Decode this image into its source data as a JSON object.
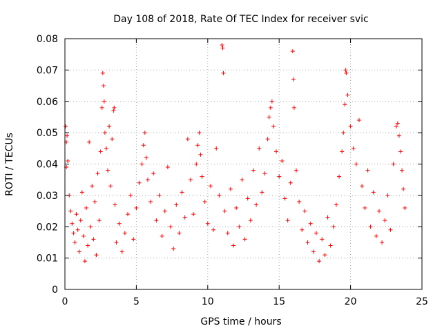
{
  "chart_data": {
    "type": "scatter",
    "title": "Day 108 of 2018, Rate Of TEC Index for receiver svic",
    "xlabel": "GPS time / hours",
    "ylabel": "ROTI / TECUs",
    "xlim": [
      0,
      25
    ],
    "ylim": [
      0,
      0.08
    ],
    "x_ticks": [
      0,
      5,
      10,
      15,
      20,
      25
    ],
    "x_tick_labels": [
      "0",
      "5",
      "10",
      "15",
      "20",
      "25"
    ],
    "y_ticks": [
      0,
      0.01,
      0.02,
      0.03,
      0.04,
      0.05,
      0.06,
      0.07,
      0.08
    ],
    "y_tick_labels": [
      "0",
      "0.01",
      "0.02",
      "0.03",
      "0.04",
      "0.05",
      "0.06",
      "0.07",
      "0.08"
    ],
    "grid": true,
    "marker": "plus",
    "color": "#ff0000",
    "series": [
      {
        "name": "ROTI",
        "points": [
          [
            0.05,
            0.052
          ],
          [
            0.1,
            0.047
          ],
          [
            0.15,
            0.049
          ],
          [
            0.1,
            0.039
          ],
          [
            0.2,
            0.041
          ],
          [
            0.3,
            0.03
          ],
          [
            0.4,
            0.025
          ],
          [
            0.5,
            0.021
          ],
          [
            0.6,
            0.018
          ],
          [
            0.7,
            0.015
          ],
          [
            0.8,
            0.024
          ],
          [
            0.9,
            0.019
          ],
          [
            1.0,
            0.012
          ],
          [
            1.1,
            0.022
          ],
          [
            1.2,
            0.031
          ],
          [
            1.3,
            0.017
          ],
          [
            1.4,
            0.009
          ],
          [
            1.5,
            0.026
          ],
          [
            1.6,
            0.014
          ],
          [
            1.7,
            0.047
          ],
          [
            1.8,
            0.02
          ],
          [
            1.9,
            0.033
          ],
          [
            2.0,
            0.016
          ],
          [
            2.1,
            0.028
          ],
          [
            2.2,
            0.011
          ],
          [
            2.3,
            0.037
          ],
          [
            2.4,
            0.022
          ],
          [
            2.5,
            0.044
          ],
          [
            2.6,
            0.058
          ],
          [
            2.65,
            0.069
          ],
          [
            2.7,
            0.065
          ],
          [
            2.75,
            0.06
          ],
          [
            2.8,
            0.05
          ],
          [
            2.9,
            0.045
          ],
          [
            3.0,
            0.038
          ],
          [
            3.1,
            0.052
          ],
          [
            3.2,
            0.033
          ],
          [
            3.3,
            0.048
          ],
          [
            3.4,
            0.057
          ],
          [
            3.45,
            0.058
          ],
          [
            3.5,
            0.027
          ],
          [
            3.6,
            0.015
          ],
          [
            3.8,
            0.021
          ],
          [
            4.0,
            0.012
          ],
          [
            4.2,
            0.018
          ],
          [
            4.4,
            0.024
          ],
          [
            4.6,
            0.03
          ],
          [
            4.8,
            0.016
          ],
          [
            5.0,
            0.026
          ],
          [
            5.2,
            0.034
          ],
          [
            5.4,
            0.04
          ],
          [
            5.5,
            0.046
          ],
          [
            5.6,
            0.05
          ],
          [
            5.7,
            0.042
          ],
          [
            5.8,
            0.035
          ],
          [
            6.0,
            0.028
          ],
          [
            6.2,
            0.037
          ],
          [
            6.4,
            0.022
          ],
          [
            6.6,
            0.03
          ],
          [
            6.8,
            0.017
          ],
          [
            7.0,
            0.025
          ],
          [
            7.2,
            0.039
          ],
          [
            7.4,
            0.02
          ],
          [
            7.6,
            0.013
          ],
          [
            7.8,
            0.027
          ],
          [
            8.0,
            0.018
          ],
          [
            8.2,
            0.031
          ],
          [
            8.4,
            0.023
          ],
          [
            8.6,
            0.048
          ],
          [
            8.8,
            0.035
          ],
          [
            9.0,
            0.024
          ],
          [
            9.2,
            0.04
          ],
          [
            9.3,
            0.046
          ],
          [
            9.4,
            0.05
          ],
          [
            9.5,
            0.043
          ],
          [
            9.6,
            0.036
          ],
          [
            9.8,
            0.028
          ],
          [
            10.0,
            0.021
          ],
          [
            10.2,
            0.033
          ],
          [
            10.4,
            0.019
          ],
          [
            10.6,
            0.045
          ],
          [
            10.8,
            0.03
          ],
          [
            11.0,
            0.078
          ],
          [
            11.05,
            0.077
          ],
          [
            11.1,
            0.069
          ],
          [
            11.2,
            0.025
          ],
          [
            11.4,
            0.018
          ],
          [
            11.6,
            0.032
          ],
          [
            11.8,
            0.014
          ],
          [
            12.0,
            0.026
          ],
          [
            12.2,
            0.02
          ],
          [
            12.4,
            0.035
          ],
          [
            12.6,
            0.016
          ],
          [
            12.8,
            0.029
          ],
          [
            13.0,
            0.022
          ],
          [
            13.2,
            0.038
          ],
          [
            13.4,
            0.027
          ],
          [
            13.6,
            0.045
          ],
          [
            13.8,
            0.031
          ],
          [
            14.0,
            0.037
          ],
          [
            14.2,
            0.048
          ],
          [
            14.3,
            0.055
          ],
          [
            14.4,
            0.058
          ],
          [
            14.5,
            0.06
          ],
          [
            14.6,
            0.052
          ],
          [
            14.8,
            0.044
          ],
          [
            15.0,
            0.036
          ],
          [
            15.2,
            0.041
          ],
          [
            15.4,
            0.029
          ],
          [
            15.6,
            0.022
          ],
          [
            15.8,
            0.034
          ],
          [
            15.95,
            0.076
          ],
          [
            16.0,
            0.067
          ],
          [
            16.05,
            0.058
          ],
          [
            16.2,
            0.038
          ],
          [
            16.4,
            0.028
          ],
          [
            16.6,
            0.019
          ],
          [
            16.8,
            0.025
          ],
          [
            17.0,
            0.015
          ],
          [
            17.2,
            0.021
          ],
          [
            17.4,
            0.012
          ],
          [
            17.6,
            0.018
          ],
          [
            17.8,
            0.009
          ],
          [
            18.0,
            0.016
          ],
          [
            18.2,
            0.011
          ],
          [
            18.4,
            0.023
          ],
          [
            18.6,
            0.014
          ],
          [
            18.8,
            0.02
          ],
          [
            19.0,
            0.027
          ],
          [
            19.2,
            0.036
          ],
          [
            19.4,
            0.044
          ],
          [
            19.5,
            0.05
          ],
          [
            19.6,
            0.059
          ],
          [
            19.65,
            0.07
          ],
          [
            19.7,
            0.069
          ],
          [
            19.8,
            0.062
          ],
          [
            20.0,
            0.052
          ],
          [
            20.2,
            0.045
          ],
          [
            20.4,
            0.04
          ],
          [
            20.6,
            0.054
          ],
          [
            20.8,
            0.033
          ],
          [
            21.0,
            0.026
          ],
          [
            21.2,
            0.038
          ],
          [
            21.4,
            0.02
          ],
          [
            21.6,
            0.031
          ],
          [
            21.8,
            0.017
          ],
          [
            22.0,
            0.025
          ],
          [
            22.2,
            0.015
          ],
          [
            22.4,
            0.022
          ],
          [
            22.6,
            0.03
          ],
          [
            22.8,
            0.019
          ],
          [
            23.0,
            0.04
          ],
          [
            23.2,
            0.052
          ],
          [
            23.3,
            0.053
          ],
          [
            23.4,
            0.049
          ],
          [
            23.5,
            0.044
          ],
          [
            23.6,
            0.038
          ],
          [
            23.7,
            0.032
          ],
          [
            23.8,
            0.026
          ]
        ]
      }
    ]
  }
}
